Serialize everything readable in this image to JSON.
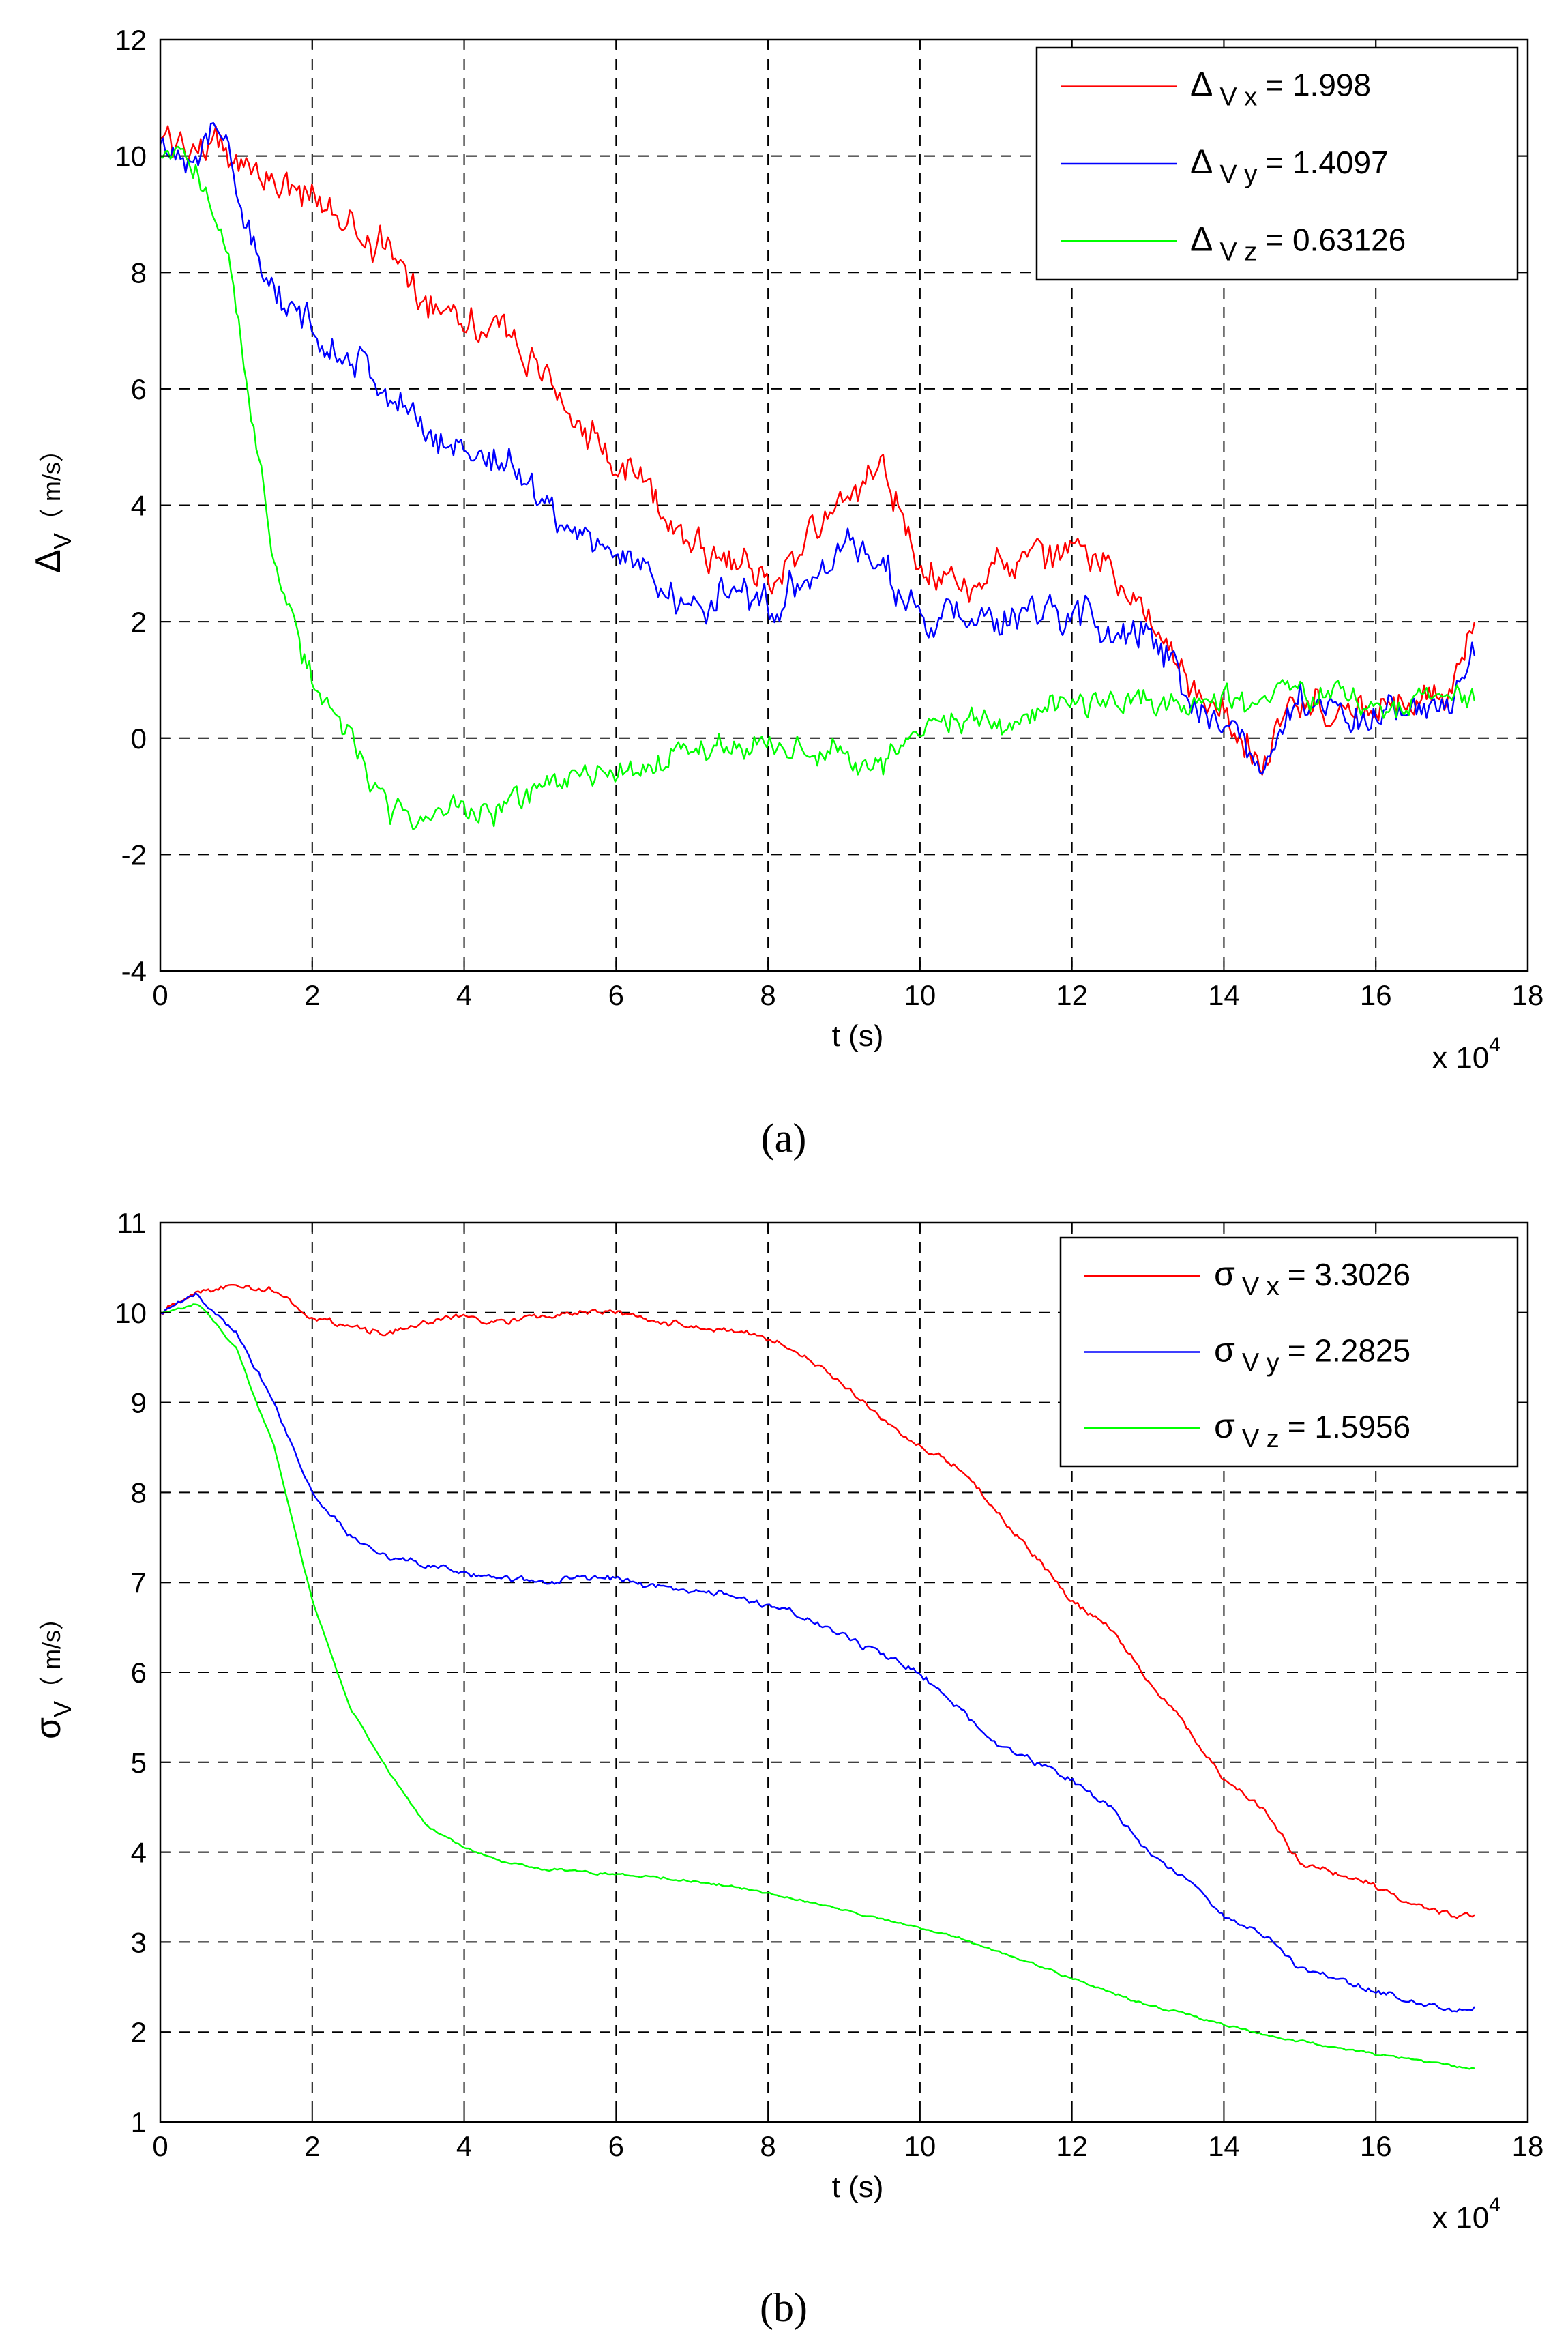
{
  "chart_data": [
    {
      "id": "a",
      "type": "line",
      "caption": "(a)",
      "xlabel": "t (s)",
      "x_multiplier_label": "x 10",
      "x_multiplier_exp": "4",
      "ylabel_main": "Δ",
      "ylabel_sub": "V",
      "ylabel_unit": "（ m/s）",
      "xlim": [
        0,
        18
      ],
      "ylim": [
        -4,
        12
      ],
      "xticks": [
        "0",
        "2",
        "4",
        "6",
        "8",
        "10",
        "12",
        "14",
        "16",
        "18"
      ],
      "yticks": [
        "-4",
        "-2",
        "0",
        "2",
        "4",
        "6",
        "8",
        "10",
        "12"
      ],
      "grid": true,
      "legend_position": "top-right",
      "noise": [
        0.45,
        0.45,
        0.35
      ],
      "series": [
        {
          "name": "Vx",
          "legend_symbol": "Δ",
          "legend_sub": "V x",
          "legend_value": "= 1.998",
          "color": "#ff0000",
          "x": [
            0,
            0.5,
            1,
            1.5,
            2,
            2.5,
            3,
            3.5,
            4,
            4.5,
            5,
            5.5,
            6,
            6.5,
            7,
            7.5,
            8,
            8.5,
            9,
            9.5,
            10,
            10.5,
            11,
            11.5,
            12,
            12.5,
            13,
            13.5,
            14,
            14.5,
            15,
            15.5,
            16,
            16.5,
            17,
            17.3
          ],
          "y": [
            10.3,
            10.2,
            10.0,
            9.6,
            9.2,
            8.9,
            8.3,
            7.6,
            7.3,
            7.0,
            6.3,
            5.5,
            4.6,
            4.2,
            3.4,
            3.0,
            2.7,
            3.4,
            4.0,
            4.8,
            3.0,
            2.6,
            2.9,
            3.0,
            3.2,
            3.0,
            2.2,
            0.8,
            0.4,
            -0.3,
            0.6,
            0.5,
            0.4,
            0.6,
            0.8,
            1.998
          ]
        },
        {
          "name": "Vy",
          "legend_symbol": "Δ",
          "legend_sub": "V y",
          "legend_value": "= 1.4097",
          "color": "#0000ff",
          "x": [
            0,
            0.5,
            0.9,
            1.2,
            1.5,
            2,
            2.5,
            3,
            3.5,
            4,
            4.5,
            5,
            5.5,
            6,
            6.5,
            7,
            7.5,
            8,
            8.5,
            9,
            9.5,
            10,
            10.5,
            11,
            11.5,
            12,
            12.5,
            13,
            13.5,
            14,
            14.5,
            15,
            15.5,
            16,
            16.5,
            17,
            17.3
          ],
          "y": [
            10.2,
            10.1,
            10.3,
            8.5,
            7.5,
            7.0,
            6.7,
            5.9,
            5.2,
            5.0,
            4.8,
            4.2,
            3.5,
            3.2,
            2.8,
            2.1,
            2.6,
            2.3,
            2.8,
            3.3,
            3.0,
            2.0,
            2.1,
            1.9,
            2.1,
            2.2,
            1.9,
            1.8,
            0.8,
            0.2,
            -0.4,
            0.5,
            0.5,
            0.4,
            0.4,
            0.6,
            1.4097
          ]
        },
        {
          "name": "Vz",
          "legend_symbol": "Δ",
          "legend_sub": "V z",
          "legend_value": "= 0.63126",
          "color": "#00ff00",
          "x": [
            0,
            0.4,
            0.8,
            1.2,
            1.6,
            2,
            2.5,
            3,
            3.5,
            4,
            4.5,
            5,
            5.5,
            6,
            6.5,
            7,
            7.5,
            8,
            8.5,
            9,
            9.5,
            10,
            10.5,
            11,
            11.5,
            12,
            12.5,
            13,
            13.5,
            14,
            14.5,
            15,
            15.5,
            16,
            16.5,
            17,
            17.3
          ],
          "y": [
            10.0,
            9.9,
            9.0,
            5.5,
            2.5,
            1.0,
            0.0,
            -1.3,
            -1.4,
            -1.2,
            -1.3,
            -0.9,
            -0.7,
            -0.7,
            -0.4,
            -0.2,
            -0.1,
            -0.1,
            -0.2,
            -0.3,
            -0.4,
            0.2,
            0.3,
            0.3,
            0.4,
            0.6,
            0.6,
            0.6,
            0.7,
            0.7,
            0.6,
            0.8,
            0.8,
            0.6,
            0.6,
            0.7,
            0.63126
          ]
        }
      ]
    },
    {
      "id": "b",
      "type": "line",
      "caption": "(b)",
      "xlabel": "t (s)",
      "x_multiplier_label": "x 10",
      "x_multiplier_exp": "4",
      "ylabel_main": "σ",
      "ylabel_sub": "V",
      "ylabel_unit": "（ m/s）",
      "xlim": [
        0,
        18
      ],
      "ylim": [
        1,
        11
      ],
      "xticks": [
        "0",
        "2",
        "4",
        "6",
        "8",
        "10",
        "12",
        "14",
        "16",
        "18"
      ],
      "yticks": [
        "1",
        "2",
        "3",
        "4",
        "5",
        "6",
        "7",
        "8",
        "9",
        "10",
        "11"
      ],
      "grid": true,
      "legend_position": "top-right",
      "noise": [
        0.05,
        0.05,
        0.02
      ],
      "series": [
        {
          "name": "Vx",
          "legend_symbol": "σ",
          "legend_sub": "V x",
          "legend_value": "= 3.3026",
          "color": "#ff0000",
          "x": [
            0,
            0.5,
            1,
            1.5,
            2,
            2.5,
            3,
            3.5,
            4,
            4.5,
            5,
            5.5,
            6,
            6.5,
            7,
            7.5,
            8,
            8.5,
            9,
            9.5,
            10,
            10.5,
            11,
            11.5,
            12,
            12.5,
            13,
            13.5,
            14,
            14.5,
            15,
            15.5,
            16,
            16.5,
            17,
            17.3
          ],
          "y": [
            10.0,
            10.25,
            10.3,
            10.25,
            9.95,
            9.85,
            9.75,
            9.9,
            9.95,
            9.9,
            9.95,
            10.0,
            10.0,
            9.9,
            9.85,
            9.8,
            9.7,
            9.5,
            9.2,
            8.8,
            8.5,
            8.3,
            7.8,
            7.3,
            6.8,
            6.5,
            5.9,
            5.4,
            4.8,
            4.5,
            3.9,
            3.75,
            3.6,
            3.4,
            3.3,
            3.3026
          ]
        },
        {
          "name": "Vy",
          "legend_symbol": "σ",
          "legend_sub": "V y",
          "legend_value": "= 2.2825",
          "color": "#0000ff",
          "x": [
            0,
            0.5,
            1,
            1.5,
            2,
            2.5,
            3,
            3.5,
            4,
            4.5,
            5,
            5.5,
            6,
            6.5,
            7,
            7.5,
            8,
            8.5,
            9,
            9.5,
            10,
            10.5,
            11,
            11.5,
            12,
            12.5,
            13,
            13.5,
            14,
            14.5,
            15,
            15.5,
            16,
            16.5,
            17,
            17.3
          ],
          "y": [
            10.0,
            10.2,
            9.8,
            9.0,
            8.0,
            7.5,
            7.3,
            7.2,
            7.1,
            7.05,
            7.0,
            7.05,
            7.05,
            6.95,
            6.9,
            6.85,
            6.75,
            6.6,
            6.4,
            6.2,
            6.0,
            5.6,
            5.2,
            5.0,
            4.8,
            4.5,
            4.0,
            3.7,
            3.3,
            3.1,
            2.7,
            2.6,
            2.45,
            2.35,
            2.25,
            2.2825
          ]
        },
        {
          "name": "Vz",
          "legend_symbol": "σ",
          "legend_sub": "V z",
          "legend_value": "= 1.5956",
          "color": "#00ff00",
          "x": [
            0,
            0.5,
            1,
            1.5,
            2,
            2.5,
            3,
            3.5,
            4,
            4.5,
            5,
            5.5,
            6,
            6.5,
            7,
            7.5,
            8,
            8.5,
            9,
            9.5,
            10,
            10.5,
            11,
            11.5,
            12,
            12.5,
            13,
            13.5,
            14,
            14.5,
            15,
            15.5,
            16,
            16.5,
            17,
            17.3
          ],
          "y": [
            10.0,
            10.1,
            9.6,
            8.5,
            6.8,
            5.6,
            4.9,
            4.3,
            4.05,
            3.9,
            3.82,
            3.78,
            3.75,
            3.72,
            3.68,
            3.62,
            3.55,
            3.45,
            3.35,
            3.25,
            3.15,
            3.05,
            2.9,
            2.75,
            2.6,
            2.45,
            2.3,
            2.2,
            2.08,
            1.98,
            1.9,
            1.83,
            1.75,
            1.7,
            1.62,
            1.5956
          ]
        }
      ]
    }
  ]
}
